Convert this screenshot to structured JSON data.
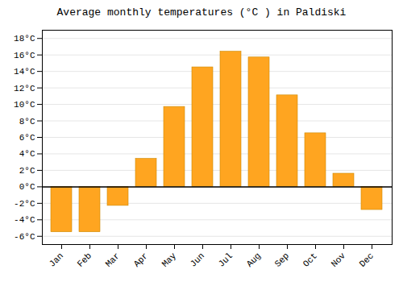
{
  "chart_data": {
    "type": "bar",
    "title": "Average monthly temperatures (°C ) in Paldiski",
    "categories": [
      "Jan",
      "Feb",
      "Mar",
      "Apr",
      "May",
      "Jun",
      "Jul",
      "Aug",
      "Sep",
      "Oct",
      "Nov",
      "Dec"
    ],
    "values": [
      -5.5,
      -5.5,
      -2.3,
      3.4,
      9.7,
      14.5,
      16.4,
      15.7,
      11.1,
      6.5,
      1.6,
      -2.8
    ],
    "color": "#FFA520",
    "ylim": [
      -7,
      19
    ],
    "yticks": [
      {
        "value": -6,
        "label": "-6°C"
      },
      {
        "value": -4,
        "label": "-4°C"
      },
      {
        "value": -2,
        "label": "-2°C"
      },
      {
        "value": 0,
        "label": "0°C"
      },
      {
        "value": 2,
        "label": "2°C"
      },
      {
        "value": 4,
        "label": "4°C"
      },
      {
        "value": 6,
        "label": "6°C"
      },
      {
        "value": 8,
        "label": "8°C"
      },
      {
        "value": 10,
        "label": "10°C"
      },
      {
        "value": 12,
        "label": "12°C"
      },
      {
        "value": 14,
        "label": "14°C"
      },
      {
        "value": 16,
        "label": "16°C"
      },
      {
        "value": 18,
        "label": "18°C"
      }
    ],
    "grid": true
  }
}
